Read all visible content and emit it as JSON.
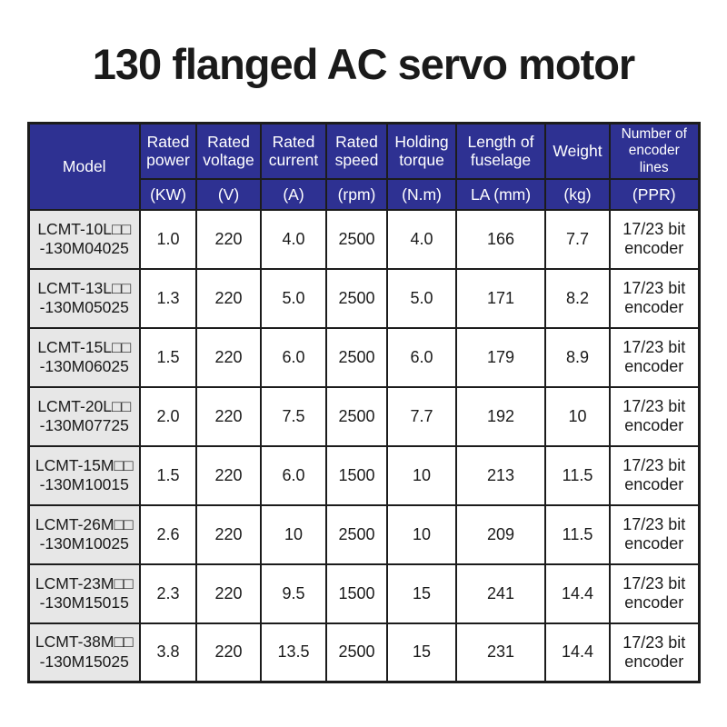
{
  "page": {
    "title": "130 flanged AC servo motor"
  },
  "colors": {
    "header_bg": "#2e3192",
    "header_text": "#ffffff",
    "model_cell_bg": "#e7e7e7",
    "border": "#1c1c1c",
    "body_text": "#1a1a1a"
  },
  "table": {
    "columns": [
      {
        "label": "Model",
        "unit": ""
      },
      {
        "label": "Rated power",
        "unit": "(KW)"
      },
      {
        "label": "Rated voltage",
        "unit": "(V)"
      },
      {
        "label": "Rated current",
        "unit": "(A)"
      },
      {
        "label": "Rated speed",
        "unit": "(rpm)"
      },
      {
        "label": "Holding torque",
        "unit": "(N.m)"
      },
      {
        "label": "Length of fuselage",
        "unit": "LA (mm)"
      },
      {
        "label": "Weight",
        "unit": "(kg)"
      },
      {
        "label": "Number of encoder lines",
        "unit": "(PPR)"
      }
    ],
    "rows": [
      {
        "model_line1": "LCMT-10L□□",
        "model_line2": "-130M04025",
        "values": [
          "1.0",
          "220",
          "4.0",
          "2500",
          "4.0",
          "166",
          "7.7",
          "17/23 bit encoder"
        ]
      },
      {
        "model_line1": "LCMT-13L□□",
        "model_line2": "-130M05025",
        "values": [
          "1.3",
          "220",
          "5.0",
          "2500",
          "5.0",
          "171",
          "8.2",
          "17/23 bit encoder"
        ]
      },
      {
        "model_line1": "LCMT-15L□□",
        "model_line2": "-130M06025",
        "values": [
          "1.5",
          "220",
          "6.0",
          "2500",
          "6.0",
          "179",
          "8.9",
          "17/23 bit encoder"
        ]
      },
      {
        "model_line1": "LCMT-20L□□",
        "model_line2": "-130M07725",
        "values": [
          "2.0",
          "220",
          "7.5",
          "2500",
          "7.7",
          "192",
          "10",
          "17/23 bit encoder"
        ]
      },
      {
        "model_line1": "LCMT-15M□□",
        "model_line2": "-130M10015",
        "values": [
          "1.5",
          "220",
          "6.0",
          "1500",
          "10",
          "213",
          "11.5",
          "17/23 bit encoder"
        ]
      },
      {
        "model_line1": "LCMT-26M□□",
        "model_line2": "-130M10025",
        "values": [
          "2.6",
          "220",
          "10",
          "2500",
          "10",
          "209",
          "11.5",
          "17/23 bit encoder"
        ]
      },
      {
        "model_line1": "LCMT-23M□□",
        "model_line2": "-130M15015",
        "values": [
          "2.3",
          "220",
          "9.5",
          "1500",
          "15",
          "241",
          "14.4",
          "17/23 bit encoder"
        ]
      },
      {
        "model_line1": "LCMT-38M□□",
        "model_line2": "-130M15025",
        "values": [
          "3.8",
          "220",
          "13.5",
          "2500",
          "15",
          "231",
          "14.4",
          "17/23 bit encoder"
        ]
      }
    ]
  }
}
